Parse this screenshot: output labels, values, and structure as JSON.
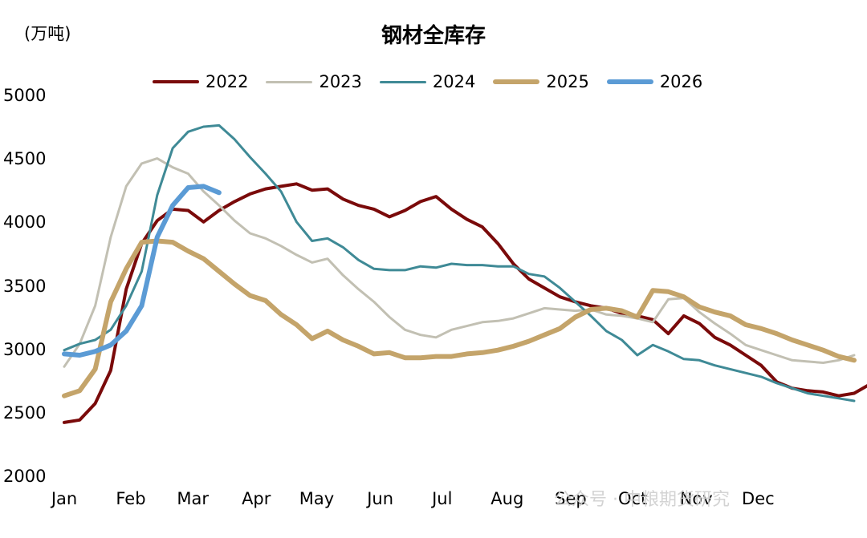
{
  "chart_data": {
    "type": "line",
    "title": "钢材全库存",
    "ylabel": "(万吨)",
    "xlabel": "",
    "ylim": [
      2000,
      5000
    ],
    "yticks": [
      5000,
      4500,
      4000,
      3500,
      3000,
      2500,
      2000
    ],
    "xlim": [
      0,
      51
    ],
    "xticks": [
      {
        "label": "Jan",
        "x": 0
      },
      {
        "label": "Feb",
        "x": 4.3
      },
      {
        "label": "Mar",
        "x": 8.3
      },
      {
        "label": "Apr",
        "x": 12.4
      },
      {
        "label": "May",
        "x": 16.3
      },
      {
        "label": "Jun",
        "x": 20.4
      },
      {
        "label": "Jul",
        "x": 24.4
      },
      {
        "label": "Aug",
        "x": 28.6
      },
      {
        "label": "Sep",
        "x": 32.7
      },
      {
        "label": "Oct",
        "x": 36.7
      },
      {
        "label": "Nov",
        "x": 40.8
      },
      {
        "label": "Dec",
        "x": 44.8
      }
    ],
    "legend_position": "top",
    "grid": false,
    "series": [
      {
        "name": "2022",
        "color": "#7a0a0a",
        "width": 4,
        "values": [
          2430,
          2450,
          2580,
          2840,
          3480,
          3840,
          4020,
          4110,
          4100,
          4010,
          4100,
          4170,
          4230,
          4270,
          4290,
          4310,
          4260,
          4270,
          4190,
          4140,
          4110,
          4050,
          4100,
          4170,
          4210,
          4110,
          4030,
          3970,
          3840,
          3680,
          3560,
          3490,
          3420,
          3380,
          3350,
          3330,
          3290,
          3270,
          3240,
          3130,
          3270,
          3210,
          3100,
          3040,
          2960,
          2880,
          2750,
          2700,
          2680,
          2670,
          2640,
          2660,
          2730
        ]
      },
      {
        "name": "2023",
        "color": "#c2c0b3",
        "width": 3,
        "values": [
          2870,
          3050,
          3350,
          3890,
          4290,
          4470,
          4510,
          4440,
          4390,
          4250,
          4140,
          4020,
          3920,
          3880,
          3820,
          3750,
          3690,
          3720,
          3590,
          3480,
          3380,
          3260,
          3160,
          3120,
          3100,
          3160,
          3190,
          3220,
          3230,
          3250,
          3290,
          3330,
          3320,
          3310,
          3320,
          3280,
          3270,
          3250,
          3220,
          3400,
          3410,
          3300,
          3210,
          3130,
          3040,
          3000,
          2960,
          2920,
          2910,
          2900,
          2920,
          2960
        ]
      },
      {
        "name": "2024",
        "color": "#3f8a96",
        "width": 3,
        "values": [
          3000,
          3050,
          3080,
          3160,
          3350,
          3620,
          4220,
          4590,
          4720,
          4760,
          4770,
          4660,
          4520,
          4390,
          4250,
          4010,
          3860,
          3880,
          3810,
          3710,
          3640,
          3630,
          3630,
          3660,
          3650,
          3680,
          3670,
          3670,
          3660,
          3660,
          3600,
          3580,
          3490,
          3380,
          3270,
          3150,
          3080,
          2960,
          3040,
          2990,
          2930,
          2920,
          2880,
          2850,
          2820,
          2790,
          2740,
          2700,
          2660,
          2640,
          2620,
          2600
        ]
      },
      {
        "name": "2025",
        "color": "#c4a46a",
        "width": 6,
        "values": [
          2640,
          2680,
          2850,
          3380,
          3640,
          3850,
          3860,
          3850,
          3780,
          3720,
          3620,
          3520,
          3430,
          3390,
          3280,
          3200,
          3090,
          3150,
          3080,
          3030,
          2970,
          2980,
          2940,
          2940,
          2950,
          2950,
          2970,
          2980,
          3000,
          3030,
          3070,
          3120,
          3170,
          3260,
          3320,
          3330,
          3310,
          3260,
          3470,
          3460,
          3420,
          3340,
          3300,
          3270,
          3200,
          3170,
          3130,
          3080,
          3040,
          3000,
          2950,
          2920
        ]
      },
      {
        "name": "2026",
        "color": "#5b9bd5",
        "width": 6,
        "values": [
          2970,
          2960,
          2990,
          3040,
          3150,
          3350,
          3890,
          4140,
          4280,
          4290,
          4240
        ]
      }
    ]
  },
  "watermark": "公众号 · 中粮期货研究"
}
